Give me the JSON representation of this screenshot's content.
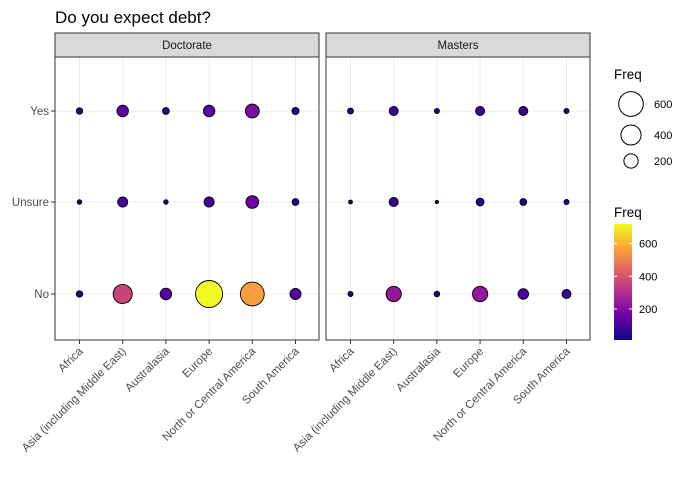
{
  "chart_data": {
    "type": "scatter",
    "title": "Do you expect debt?",
    "panels": [
      "Doctorate",
      "Masters"
    ],
    "x_categories": [
      "Africa",
      "Asia (including Middle East)",
      "Australasia",
      "Europe",
      "North or Central America",
      "South America"
    ],
    "y_categories": [
      "Yes",
      "Unsure",
      "No"
    ],
    "series": [
      {
        "name": "Doctorate",
        "points": [
          {
            "x": "Africa",
            "y": "Yes",
            "freq": 40
          },
          {
            "x": "Asia (including Middle East)",
            "y": "Yes",
            "freq": 130
          },
          {
            "x": "Australasia",
            "y": "Yes",
            "freq": 45
          },
          {
            "x": "Europe",
            "y": "Yes",
            "freq": 130
          },
          {
            "x": "North or Central America",
            "y": "Yes",
            "freq": 190
          },
          {
            "x": "South America",
            "y": "Yes",
            "freq": 50
          },
          {
            "x": "Africa",
            "y": "Unsure",
            "freq": 20
          },
          {
            "x": "Asia (including Middle East)",
            "y": "Unsure",
            "freq": 100
          },
          {
            "x": "Australasia",
            "y": "Unsure",
            "freq": 20
          },
          {
            "x": "Europe",
            "y": "Unsure",
            "freq": 100
          },
          {
            "x": "North or Central America",
            "y": "Unsure",
            "freq": 160
          },
          {
            "x": "South America",
            "y": "Unsure",
            "freq": 45
          },
          {
            "x": "Africa",
            "y": "No",
            "freq": 40
          },
          {
            "x": "Asia (including Middle East)",
            "y": "No",
            "freq": 360
          },
          {
            "x": "Australasia",
            "y": "No",
            "freq": 130
          },
          {
            "x": "Europe",
            "y": "No",
            "freq": 720
          },
          {
            "x": "North or Central America",
            "y": "No",
            "freq": 560
          },
          {
            "x": "South America",
            "y": "No",
            "freq": 120
          }
        ]
      },
      {
        "name": "Masters",
        "points": [
          {
            "x": "Africa",
            "y": "Yes",
            "freq": 35
          },
          {
            "x": "Asia (including Middle East)",
            "y": "Yes",
            "freq": 80
          },
          {
            "x": "Australasia",
            "y": "Yes",
            "freq": 25
          },
          {
            "x": "Europe",
            "y": "Yes",
            "freq": 80
          },
          {
            "x": "North or Central America",
            "y": "Yes",
            "freq": 80
          },
          {
            "x": "South America",
            "y": "Yes",
            "freq": 25
          },
          {
            "x": "Africa",
            "y": "Unsure",
            "freq": 15
          },
          {
            "x": "Asia (including Middle East)",
            "y": "Unsure",
            "freq": 80
          },
          {
            "x": "Australasia",
            "y": "Unsure",
            "freq": 10
          },
          {
            "x": "Europe",
            "y": "Unsure",
            "freq": 60
          },
          {
            "x": "North or Central America",
            "y": "Unsure",
            "freq": 45
          },
          {
            "x": "South America",
            "y": "Unsure",
            "freq": 25
          },
          {
            "x": "Africa",
            "y": "No",
            "freq": 25
          },
          {
            "x": "Asia (including Middle East)",
            "y": "No",
            "freq": 230
          },
          {
            "x": "Australasia",
            "y": "No",
            "freq": 30
          },
          {
            "x": "Europe",
            "y": "No",
            "freq": 230
          },
          {
            "x": "North or Central America",
            "y": "No",
            "freq": 110
          },
          {
            "x": "South America",
            "y": "No",
            "freq": 80
          }
        ]
      }
    ],
    "size_legend": {
      "title": "Freq",
      "values": [
        600,
        400,
        200
      ]
    },
    "color_legend": {
      "title": "Freq",
      "ticks": [
        600,
        400,
        200
      ],
      "range": [
        10,
        720
      ],
      "colors": [
        "#0d0887",
        "#6a00a8",
        "#b12a90",
        "#e16462",
        "#fca636",
        "#f0f921"
      ]
    },
    "grid": true,
    "legend_position": "right"
  }
}
